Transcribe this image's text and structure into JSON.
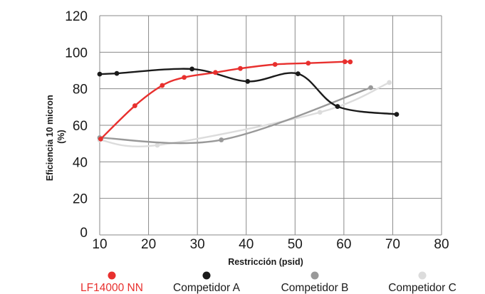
{
  "chart_data": {
    "type": "line",
    "xlabel": "Restricción (psid)",
    "ylabel": "Eficiencia 10 micron (%)",
    "ylabel_lines": [
      "Eficiencia 10 micron",
      "(%)"
    ],
    "xlim": [
      10,
      80
    ],
    "ylim": [
      0,
      120
    ],
    "x_ticks": [
      "10",
      "20",
      "30",
      "40",
      "50",
      "60",
      "70",
      "80"
    ],
    "y_ticks": [
      "0",
      "20",
      "40",
      "60",
      "80",
      "100",
      "120"
    ],
    "grid": true,
    "legend_position": "bottom",
    "series": [
      {
        "name": "LF14000 NN",
        "color": "#e8302e",
        "text_color": "#e8302e",
        "x": [
          10.2,
          17.2,
          22.8,
          27.3,
          33.7,
          38.8,
          45.9,
          52.7,
          60.2,
          61.3
        ],
        "y": [
          52.5,
          70.7,
          81.8,
          86.2,
          88.9,
          91.1,
          93.3,
          94.0,
          94.8,
          94.7
        ]
      },
      {
        "name": "Competidor A",
        "color": "#1a1a1a",
        "text_color": "#1a1a1a",
        "x": [
          10.0,
          13.5,
          28.9,
          40.3,
          50.6,
          58.7,
          70.8
        ],
        "y": [
          88.0,
          88.4,
          90.8,
          84.0,
          88.2,
          70.3,
          66.0
        ]
      },
      {
        "name": "Competidor B",
        "color": "#999999",
        "text_color": "#1a1a1a",
        "x": [
          10.0,
          34.9,
          65.5
        ],
        "y": [
          53.2,
          52.0,
          80.6
        ]
      },
      {
        "name": "Competidor C",
        "color": "#dcdcdc",
        "text_color": "#1a1a1a",
        "x": [
          10.0,
          21.8,
          55.1,
          69.3
        ],
        "y": [
          52.0,
          49.1,
          67.1,
          83.4
        ]
      }
    ]
  }
}
